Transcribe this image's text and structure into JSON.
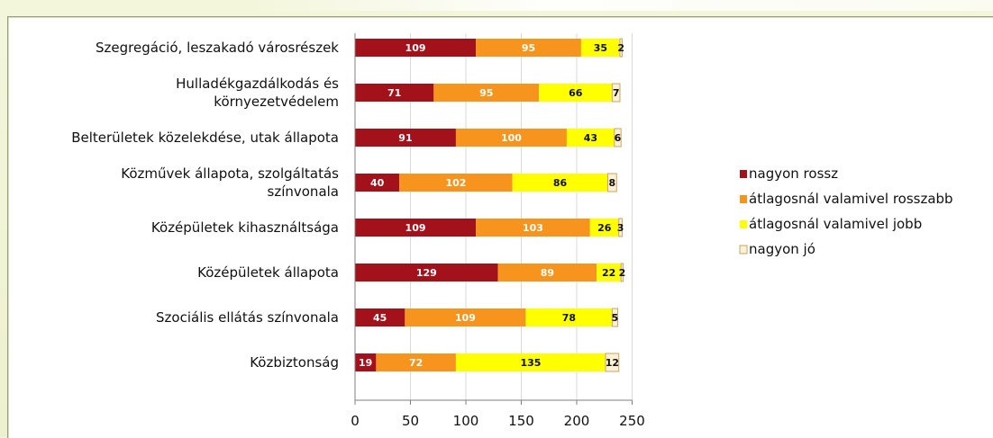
{
  "chart_data": {
    "type": "bar",
    "orientation": "horizontal",
    "stacked": true,
    "categories": [
      "Szegregáció, leszakadó városrészek",
      "Hulladékgazdálkodás és\nkörnyezetvédelem",
      "Belterületek közelekdése, utak állapota",
      "Közművek állapota, szolgáltatás\nszínvonala",
      "Középületek kihasználtsága",
      "Középületek állapota",
      "Szociális ellátás színvonala",
      "Közbiztonság"
    ],
    "series": [
      {
        "name": "nagyon rossz",
        "color": "#a3121b",
        "label_color": "#ffffff",
        "values": [
          109,
          71,
          91,
          40,
          109,
          129,
          45,
          19
        ]
      },
      {
        "name": "átlagosnál valamivel rosszabb",
        "color": "#f7941d",
        "label_color": "#ffffff",
        "values": [
          95,
          95,
          100,
          102,
          103,
          89,
          109,
          72
        ]
      },
      {
        "name": "átlagosnál valamivel jobb",
        "color": "#ffff00",
        "label_color": "#111111",
        "values": [
          35,
          66,
          43,
          86,
          26,
          22,
          78,
          135
        ]
      },
      {
        "name": "nagyon jó",
        "color": "#fdf2d4",
        "label_color": "#111111",
        "values": [
          2,
          7,
          6,
          8,
          3,
          2,
          5,
          12
        ]
      }
    ],
    "xlim": [
      0,
      250
    ],
    "xticks": [
      "0",
      "50",
      "100",
      "150",
      "200",
      "250"
    ],
    "grid": true,
    "legend_position": "right",
    "title": "",
    "xlabel": "",
    "ylabel": ""
  }
}
